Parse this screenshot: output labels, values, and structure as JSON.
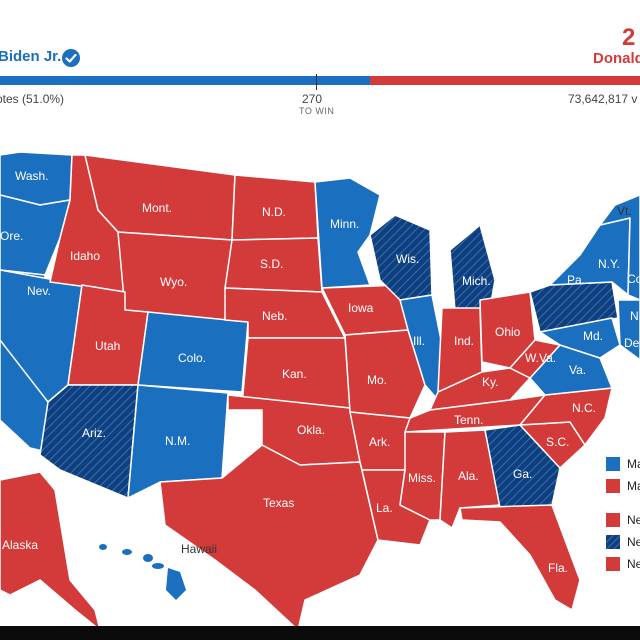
{
  "header": {
    "left_candidate": "Biden Jr.",
    "right_candidate": "Donald",
    "top_number": "2",
    "left_votes": "otes (51.0%)",
    "win_number": "270",
    "win_label": "TO WIN",
    "right_votes": "73,642,817 v"
  },
  "colors": {
    "dem": "#1a6fbf",
    "rep": "#d33a3a",
    "dem_flip": "#0e3f7f"
  },
  "states": {
    "wash": "Wash.",
    "ore": "Ore.",
    "idaho": "Idaho",
    "mont": "Mont.",
    "wyo": "Wyo.",
    "nev": "Nev.",
    "utah": "Utah",
    "colo": "Colo.",
    "ariz": "Ariz.",
    "nm": "N.M.",
    "nd": "N.D.",
    "sd": "S.D.",
    "neb": "Neb.",
    "kan": "Kan.",
    "okla": "Okla.",
    "texas": "Texas",
    "minn": "Minn.",
    "iowa": "Iowa",
    "mo": "Mo.",
    "ark": "Ark.",
    "la": "La.",
    "wis": "Wis.",
    "ill": "Ill.",
    "mich": "Mich.",
    "ind": "Ind.",
    "ohio": "Ohio",
    "ky": "Ky.",
    "tenn": "Tenn.",
    "miss": "Miss.",
    "ala": "Ala.",
    "ga": "Ga.",
    "fla": "Fla.",
    "sc": "S.C.",
    "nc": "N.C.",
    "va": "Va.",
    "wva": "W.Va.",
    "pa": "Pa.",
    "ny": "N.Y.",
    "vt": "Vt.",
    "md": "Md.",
    "alaska": "Alaska",
    "hawaii": "Hawaii",
    "co_partial": "Co",
    "n_partial": "N",
    "de_partial": "De"
  },
  "legend": {
    "items": [
      "Ma",
      "Ma",
      "Ne",
      "Ne",
      "Ne"
    ]
  }
}
